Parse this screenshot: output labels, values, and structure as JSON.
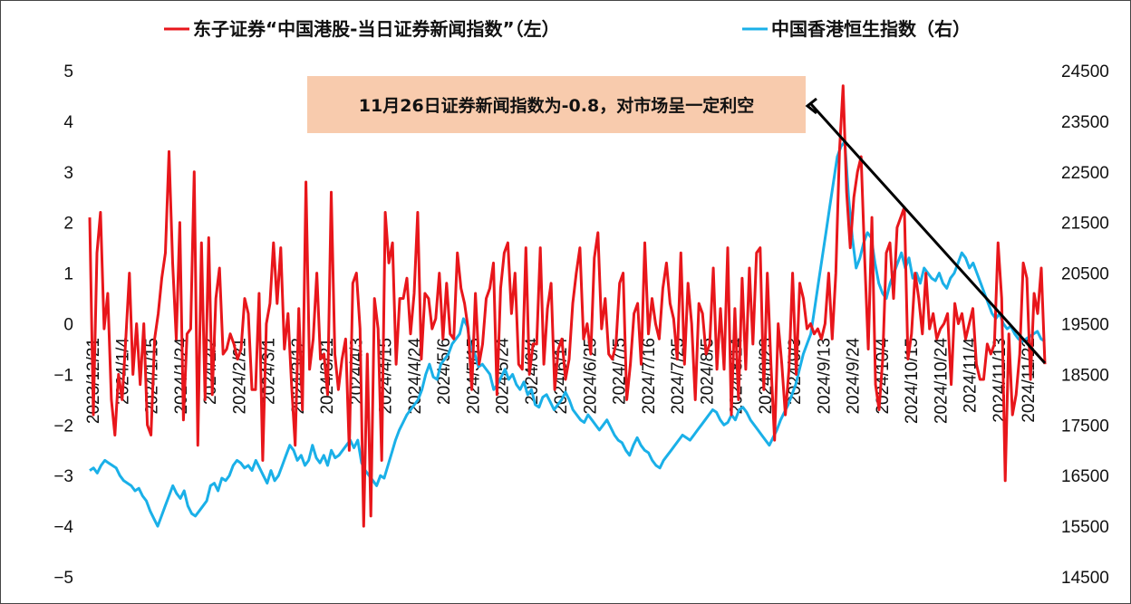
{
  "chart_data": {
    "type": "line",
    "legend": [
      {
        "label": "东子证券“中国港股-当日证券新闻指数”（左）",
        "color": "#e8161b"
      },
      {
        "label": "中国香港恒生指数（右）",
        "color": "#1ab0e8"
      }
    ],
    "y_left": {
      "ticks": [
        "5",
        "4",
        "3",
        "2",
        "1",
        "0",
        "−1",
        "−2",
        "−3",
        "−4",
        "−5"
      ],
      "min": -5,
      "max": 5
    },
    "y_right": {
      "ticks": [
        "24500",
        "23500",
        "22500",
        "21500",
        "20500",
        "19500",
        "18500",
        "17500",
        "16500",
        "15500",
        "14500"
      ],
      "min": 14500,
      "max": 24500
    },
    "x_ticks": [
      "2023/12/21",
      "2024/1/4",
      "2024/1/15",
      "2024/1/24",
      "2024/2/2",
      "2024/2/21",
      "2024/3/1",
      "2024/3/12",
      "2024/3/21",
      "2024/4/3",
      "2024/4/15",
      "2024/4/24",
      "2024/5/6",
      "2024/5/15",
      "2024/5/24",
      "2024/6/4",
      "2024/6/14",
      "2024/6/25",
      "2024/7/5",
      "2024/7/16",
      "2024/7/25",
      "2024/8/5",
      "2024/8/14",
      "2024/8/23",
      "2024/9/3",
      "2024/9/13",
      "2024/9/24",
      "2024/10/4",
      "2024/10/15",
      "2024/10/24",
      "2024/11/4",
      "2024/11/13",
      "2024/11/22"
    ],
    "annotation": {
      "text": "11月26日证券新闻指数为-0.8，对市场呈一定利空",
      "box_color": "#f8cbad"
    },
    "series": [
      {
        "name": "东子证券“中国港股-当日证券新闻指数”（左）",
        "color": "#e8161b",
        "axis": "left",
        "values": [
          2.1,
          -1.8,
          1.4,
          2.2,
          -0.1,
          0.6,
          -1.5,
          -2.2,
          -1.0,
          -1.5,
          -0.3,
          1.0,
          -1.0,
          0.0,
          -1.2,
          0.0,
          -2.0,
          -2.2,
          -0.3,
          0.2,
          0.9,
          1.4,
          3.4,
          1.2,
          -0.3,
          2.0,
          -1.9,
          -0.2,
          -0.1,
          3.0,
          -2.4,
          1.6,
          -1.5,
          1.7,
          -1.4,
          0.5,
          1.1,
          -0.6,
          -0.5,
          -0.2,
          -0.4,
          -0.7,
          -0.5,
          0.5,
          0.2,
          -1.3,
          -1.3,
          0.6,
          -2.7,
          0.0,
          0.4,
          1.6,
          0.4,
          1.5,
          -0.5,
          0.2,
          -1.2,
          -2.4,
          0.3,
          -1.7,
          2.8,
          -0.9,
          -0.3,
          1.0,
          -0.7,
          -0.6,
          -1.4,
          2.6,
          -0.6,
          -1.3,
          -0.7,
          -0.3,
          -2.5,
          0.8,
          1.0,
          -0.1,
          -4.0,
          -0.6,
          -3.8,
          0.5,
          -0.1,
          -2.7,
          2.2,
          1.2,
          1.6,
          -0.8,
          0.5,
          0.5,
          0.9,
          -0.2,
          0.6,
          2.2,
          -0.7,
          0.6,
          0.5,
          -0.1,
          0.1,
          1.0,
          -0.3,
          0.8,
          -0.2,
          -0.3,
          1.4,
          0.7,
          0.4,
          -0.1,
          -1.3,
          0.6,
          -0.8,
          -0.4,
          0.5,
          0.7,
          1.2,
          -1.4,
          0.7,
          1.4,
          1.6,
          0.2,
          1.0,
          -0.8,
          -0.9,
          1.5,
          -1.0,
          -0.4,
          -0.4,
          1.5,
          -0.8,
          0.3,
          0.8,
          -1.3,
          -0.5,
          -0.3,
          -1.1,
          -0.7,
          0.4,
          1.0,
          1.5,
          -0.3,
          0.0,
          -0.6,
          1.3,
          1.8,
          -0.1,
          0.5,
          -0.6,
          -0.7,
          -0.4,
          0.8,
          1.0,
          -1.5,
          -0.8,
          0.2,
          0.4,
          -0.8,
          1.6,
          -0.2,
          0.5,
          0.0,
          -0.3,
          0.7,
          1.2,
          0.4,
          0.1,
          -0.7,
          1.4,
          -0.8,
          0.8,
          0.0,
          -1.5,
          0.4,
          0.2,
          -0.6,
          -0.4,
          1.1,
          -0.9,
          0.3,
          -0.9,
          1.5,
          -1.8,
          0.3,
          -1.5,
          0.9,
          -0.9,
          1.1,
          -0.4,
          1.4,
          1.5,
          -1.3,
          1.0,
          -0.8,
          -2.3,
          0.0,
          -0.8,
          -1.8,
          -0.9,
          1.0,
          -1.0,
          0.8,
          0.5,
          -0.1,
          0.0,
          -0.2,
          -0.1,
          -0.3,
          0.0,
          1.0,
          -0.3,
          1.0,
          3.4,
          4.7,
          2.6,
          1.5,
          2.5,
          3.0,
          3.3,
          1.3,
          -0.5,
          2.1,
          -1.2,
          -1.7,
          -0.7,
          1.4,
          1.6,
          0.5,
          1.9,
          2.1,
          2.3,
          -0.7,
          -0.2,
          1.0,
          0.5,
          -0.2,
          1.0,
          -0.1,
          0.2,
          -0.3,
          -0.1,
          0.0,
          0.2,
          -1.2,
          0.4,
          0.0,
          0.2,
          -0.3,
          0.0,
          0.3,
          -0.8,
          -1.1,
          -1.1,
          -0.4,
          -0.6,
          -0.4,
          1.6,
          0.5,
          -3.1,
          -0.2,
          -1.8,
          -1.4,
          -0.6,
          1.2,
          0.9,
          -1.1,
          0.6,
          0.2,
          1.1,
          -0.8
        ]
      },
      {
        "name": "中国香港恒生指数（右）",
        "color": "#1ab0e8",
        "axis": "right",
        "values": [
          16600,
          16650,
          16550,
          16700,
          16800,
          16750,
          16700,
          16650,
          16500,
          16400,
          16350,
          16300,
          16200,
          16250,
          16100,
          16000,
          15800,
          15650,
          15500,
          15700,
          15900,
          16100,
          16300,
          16150,
          16050,
          16200,
          15900,
          15750,
          15700,
          15800,
          15900,
          16000,
          16300,
          16350,
          16200,
          16450,
          16400,
          16500,
          16700,
          16800,
          16750,
          16650,
          16700,
          16600,
          16800,
          16650,
          16500,
          16350,
          16600,
          16400,
          16500,
          16700,
          16900,
          17100,
          17000,
          16800,
          16900,
          16700,
          16800,
          17100,
          16850,
          16750,
          16900,
          16700,
          17000,
          16850,
          16900,
          17000,
          17100,
          17200,
          17050,
          17200,
          16750,
          16600,
          16500,
          16400,
          16300,
          16500,
          16450,
          16700,
          16950,
          17200,
          17400,
          17550,
          17700,
          17800,
          17900,
          18000,
          18200,
          18500,
          18700,
          18450,
          18400,
          18700,
          18800,
          18900,
          19100,
          19200,
          19300,
          19600,
          19450,
          19000,
          18900,
          18650,
          18700,
          18600,
          18500,
          18200,
          18300,
          18450,
          18600,
          18400,
          18500,
          18300,
          18200,
          18350,
          18100,
          18200,
          17900,
          17850,
          18050,
          18100,
          17950,
          17800,
          17900,
          18000,
          18150,
          18000,
          17800,
          17700,
          17600,
          17550,
          17700,
          17600,
          17500,
          17400,
          17500,
          17600,
          17450,
          17300,
          17200,
          17150,
          17000,
          16900,
          17100,
          17250,
          17100,
          17000,
          16950,
          16800,
          16700,
          16650,
          16800,
          16900,
          17000,
          17100,
          17200,
          17300,
          17250,
          17200,
          17300,
          17400,
          17500,
          17600,
          17700,
          17800,
          17750,
          17600,
          17500,
          17550,
          17700,
          17600,
          17800,
          17850,
          17750,
          17600,
          17500,
          17400,
          17300,
          17200,
          17100,
          17250,
          17400,
          17600,
          17750,
          17900,
          18100,
          18300,
          18600,
          18900,
          19100,
          19300,
          19800,
          20300,
          20800,
          21300,
          21800,
          22300,
          22800,
          23000,
          23100,
          22000,
          21200,
          20600,
          20800,
          21100,
          21300,
          21200,
          20700,
          20300,
          20100,
          20000,
          20300,
          20500,
          20700,
          20900,
          20600,
          20800,
          20400,
          20500,
          20300,
          20600,
          20500,
          20400,
          20350,
          20500,
          20300,
          20200,
          20400,
          20500,
          20700,
          20900,
          20800,
          20600,
          20700,
          20500,
          20300,
          20100,
          19900,
          19700,
          19600,
          19700,
          19500,
          19400,
          19450,
          19300,
          19200,
          19150,
          19200,
          19250,
          19300,
          19350,
          19200,
          19150
        ]
      }
    ]
  }
}
